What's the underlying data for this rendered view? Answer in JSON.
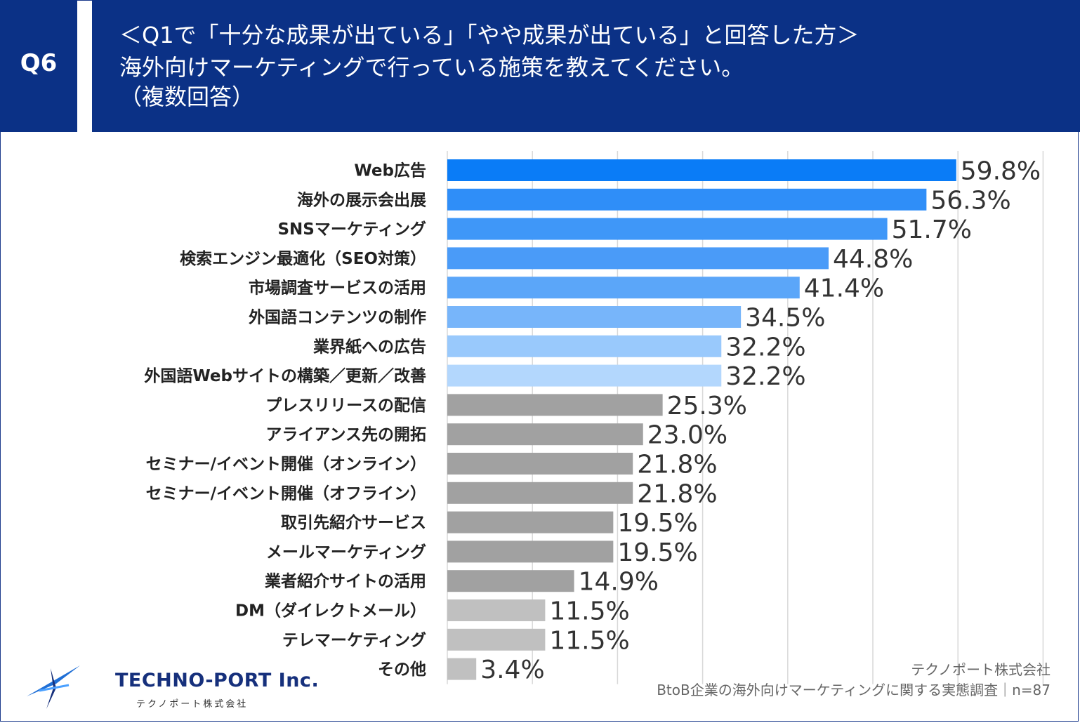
{
  "header": {
    "q_number": "Q6",
    "lines": [
      "＜Q1で「十分な成果が出ている」「やや成果が出ている」と回答した方＞",
      "海外向けマーケティングで行っている施策を教えてください。",
      "（複数回答）"
    ]
  },
  "chart_data": {
    "type": "bar",
    "orientation": "horizontal",
    "unit": "%",
    "xlim": [
      0,
      70
    ],
    "grid": true,
    "categories": [
      "Web広告",
      "海外の展示会出展",
      "SNSマーケティング",
      "検索エンジン最適化（SEO対策）",
      "市場調査サービスの活用",
      "外国語コンテンツの制作",
      "業界紙への広告",
      "外国語Webサイトの構築／更新／改善",
      "プレスリリースの配信",
      "アライアンス先の開拓",
      "セミナー/イベント開催（オンライン）",
      "セミナー/イベント開催（オフライン）",
      "取引先紹介サービス",
      "メールマーケティング",
      "業者紹介サイトの活用",
      "DM（ダイレクトメール）",
      "テレマーケティング",
      "その他"
    ],
    "values": [
      59.8,
      56.3,
      51.7,
      44.8,
      41.4,
      34.5,
      32.2,
      32.2,
      25.3,
      23.0,
      21.8,
      21.8,
      19.5,
      19.5,
      14.9,
      11.5,
      11.5,
      3.4
    ],
    "value_labels": [
      "59.8%",
      "56.3%",
      "51.7%",
      "44.8%",
      "41.4%",
      "34.5%",
      "32.2%",
      "32.2%",
      "25.3%",
      "23.0%",
      "21.8%",
      "21.8%",
      "19.5%",
      "19.5%",
      "14.9%",
      "11.5%",
      "11.5%",
      "3.4%"
    ],
    "colors": [
      "#0a7cf7",
      "#2f8ef8",
      "#3f97f8",
      "#4a9bf8",
      "#5ba6f9",
      "#77b5fa",
      "#99c9fc",
      "#b3d7fd",
      "#a1a1a1",
      "#a1a1a1",
      "#a1a1a1",
      "#a1a1a1",
      "#a1a1a1",
      "#a1a1a1",
      "#a1a1a1",
      "#c0c0c0",
      "#c0c0c0",
      "#c0c0c0"
    ]
  },
  "source": {
    "company": "テクノポート株式会社",
    "survey": "BtoB企業の海外向けマーケティングに関する実態調査｜n=87"
  },
  "logo": {
    "name": "TECHNO-PORT Inc.",
    "sub": "テクノポート株式会社"
  }
}
